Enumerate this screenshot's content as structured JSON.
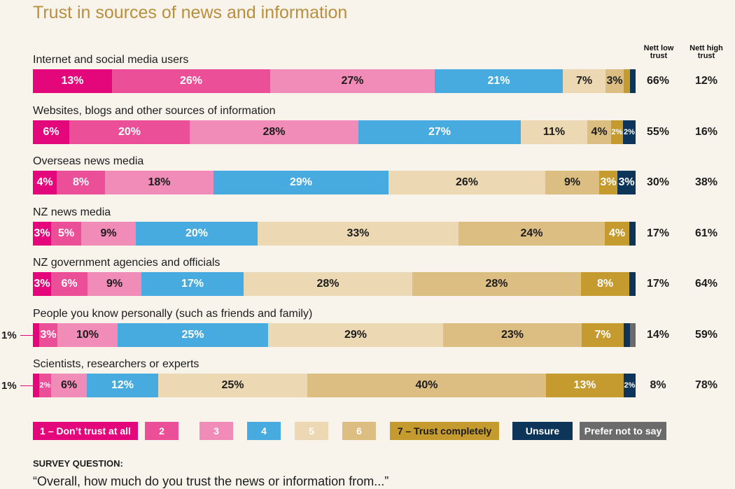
{
  "page": {
    "title": "Trust in sources of news and information",
    "column_headers": {
      "nett_low": "Nett low trust",
      "nett_high": "Nett high trust"
    },
    "survey_question_label": "SURVEY QUESTION:",
    "survey_question_text": "“Overall, how much do you trust the news or information from...”"
  },
  "colors": {
    "c1": "#e3077b",
    "c2": "#ea4f97",
    "c3": "#f08cb7",
    "c4": "#48abdf",
    "c5": "#ecd8b2",
    "c6": "#dcbd82",
    "c7": "#c59a2e",
    "unsure": "#0d3559",
    "pnts": "#6b6b6b"
  },
  "chart_data": {
    "type": "bar",
    "orientation": "horizontal",
    "stacked": true,
    "title": "Trust in sources of news and information",
    "categories": [
      "Internet and social media users",
      "Websites, blogs and other sources of information",
      "Overseas news media",
      "NZ news media",
      "NZ government agencies and officials",
      "People you know personally (such as friends and family)",
      "Scientists, researchers or experts"
    ],
    "series": [
      {
        "key": "c1",
        "name": "1 – Don't trust at all",
        "text": "#ffffff",
        "values": [
          13,
          6,
          4,
          3,
          3,
          1,
          1
        ],
        "labels": [
          "13%",
          "6%",
          "4%",
          "3%",
          "3%",
          "",
          ""
        ]
      },
      {
        "key": "c2",
        "name": "2",
        "text": "#ffffff",
        "values": [
          26,
          20,
          8,
          5,
          6,
          3,
          2
        ],
        "labels": [
          "26%",
          "20%",
          "8%",
          "5%",
          "6%",
          "3%",
          "2%"
        ]
      },
      {
        "key": "c3",
        "name": "3",
        "text": "#1c1c1c",
        "values": [
          27,
          28,
          18,
          9,
          9,
          10,
          6
        ],
        "labels": [
          "27%",
          "28%",
          "18%",
          "9%",
          "9%",
          "10%",
          "6%"
        ]
      },
      {
        "key": "c4",
        "name": "4",
        "text": "#ffffff",
        "values": [
          21,
          27,
          29,
          20,
          17,
          25,
          12
        ],
        "labels": [
          "21%",
          "27%",
          "29%",
          "20%",
          "17%",
          "25%",
          "12%"
        ]
      },
      {
        "key": "c5",
        "name": "5",
        "text": "#1c1c1c",
        "values": [
          7,
          11,
          26,
          33,
          28,
          29,
          25
        ],
        "labels": [
          "7%",
          "11%",
          "26%",
          "33%",
          "28%",
          "29%",
          "25%"
        ]
      },
      {
        "key": "c6",
        "name": "6",
        "text": "#1c1c1c",
        "values": [
          3,
          4,
          9,
          24,
          28,
          23,
          40
        ],
        "labels": [
          "3%",
          "4%",
          "9%",
          "24%",
          "28%",
          "23%",
          "40%"
        ]
      },
      {
        "key": "c7",
        "name": "7 – Trust completely",
        "text": "#ffffff",
        "values": [
          1,
          2,
          3,
          4,
          8,
          7,
          13
        ],
        "labels": [
          "",
          "2%",
          "3%",
          "4%",
          "8%",
          "7%",
          "13%"
        ]
      },
      {
        "key": "unsure",
        "name": "Unsure",
        "text": "#ffffff",
        "values": [
          1,
          2,
          3,
          1,
          1,
          1,
          2
        ],
        "labels": [
          "",
          "2%",
          "3%",
          "",
          "",
          "",
          "2%"
        ]
      },
      {
        "key": "pnts",
        "name": "Prefer not to say",
        "text": "#ffffff",
        "values": [
          0,
          0,
          0,
          0,
          0,
          1,
          0
        ],
        "labels": [
          "",
          "",
          "",
          "",
          "",
          "",
          ""
        ]
      }
    ],
    "nett_low_trust": [
      "66%",
      "55%",
      "30%",
      "17%",
      "17%",
      "14%",
      "8%"
    ],
    "nett_high_trust": [
      "12%",
      "16%",
      "38%",
      "61%",
      "64%",
      "59%",
      "78%"
    ],
    "callouts": [
      {
        "row": 5,
        "label": "1%"
      },
      {
        "row": 6,
        "label": "1%"
      }
    ],
    "xlim": [
      0,
      100
    ],
    "legend": [
      {
        "key": "c1",
        "label": "1 – Don’t trust at all",
        "text": "#ffffff"
      },
      {
        "key": "c2",
        "label": "2",
        "text": "#ffffff"
      },
      {
        "key": "c3",
        "label": "3",
        "text": "#ffffff"
      },
      {
        "key": "c4",
        "label": "4",
        "text": "#ffffff"
      },
      {
        "key": "c5",
        "label": "5",
        "text": "#ffffff"
      },
      {
        "key": "c6",
        "label": "6",
        "text": "#ffffff"
      },
      {
        "key": "c7",
        "label": "7 – Trust completely",
        "text": "#1c1c1c"
      },
      {
        "key": "unsure",
        "label": "Unsure",
        "text": "#ffffff"
      },
      {
        "key": "pnts",
        "label": "Prefer not to say",
        "text": "#ffffff"
      }
    ]
  }
}
